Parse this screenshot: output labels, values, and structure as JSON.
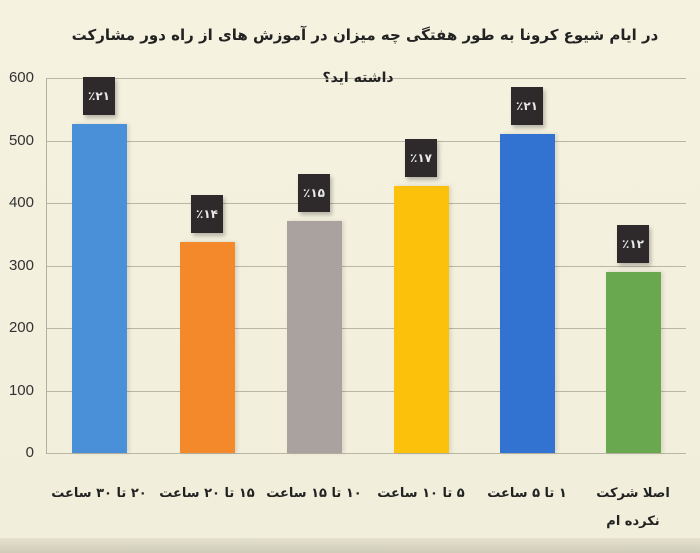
{
  "chart_data": {
    "type": "bar",
    "title": "در ایام شیوع کرونا به طور هفتگی چه میزان در آموزش های از راه دور مشارکت داشته اید؟",
    "title_lines": [
      "در ایام شیوع کرونا به طور هفتگی چه میزان در آموزش های از راه دور مشارکت",
      "داشته اید؟"
    ],
    "categories": [
      "۲۰ تا ۳۰ ساعت",
      "۱۵ تا ۲۰ ساعت",
      "۱۰ تا ۱۵ ساعت",
      "۵ تا ۱۰ ساعت",
      "۱ تا ۵ ساعت",
      "اصلا شرکت نکرده ام"
    ],
    "values": [
      526,
      338,
      371,
      427,
      510,
      290
    ],
    "percent_labels": [
      "٪۲۱",
      "٪۱۴",
      "٪۱۵",
      "٪۱۷",
      "٪۲۱",
      "٪۱۲"
    ],
    "colors": [
      "#4a90d9",
      "#f4892c",
      "#a9a29f",
      "#fcc20b",
      "#3273d2",
      "#6aa84f"
    ],
    "xlabel": "",
    "ylabel": "",
    "ylim": [
      0,
      600
    ],
    "yticks": [
      0,
      100,
      200,
      300,
      400,
      500,
      600
    ],
    "grid": true,
    "legend": "none"
  }
}
